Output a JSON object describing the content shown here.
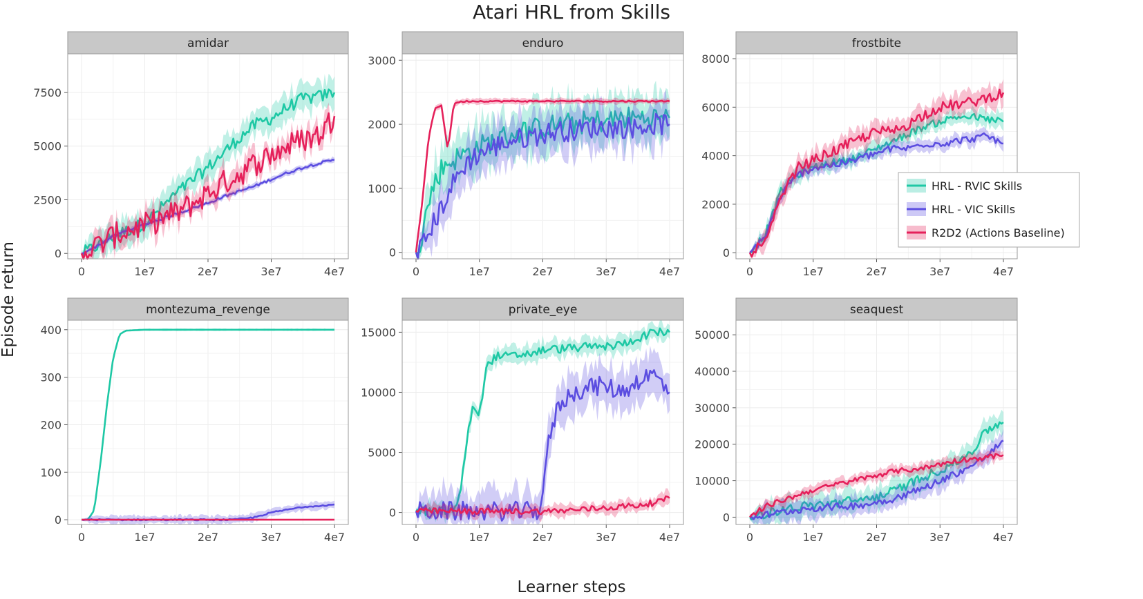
{
  "figure": {
    "title": "Atari HRL from Skills",
    "xlabel": "Learner steps",
    "ylabel": "Episode return"
  },
  "legend": {
    "placement": "right of frostbite panel",
    "entries": [
      {
        "label": "HRL - RVIC Skills",
        "color": "#1ec8a5"
      },
      {
        "label": "HRL - VIC Skills",
        "color": "#5b4de0"
      },
      {
        "label": "R2D2 (Actions Baseline)",
        "color": "#e5205a"
      }
    ]
  },
  "colors": {
    "rvic": "#1ec8a5",
    "vic": "#5b4de0",
    "r2d2": "#e5205a",
    "strip": "#c8c8c8",
    "grid": "#ececec"
  },
  "chart_data": [
    {
      "type": "line",
      "title": "amidar",
      "xlabel": "Learner steps",
      "ylabel": "Episode return",
      "xlim": [
        0,
        40000000
      ],
      "ylim": [
        -250,
        9300
      ],
      "xticks": [
        0,
        10000000,
        20000000,
        30000000,
        40000000
      ],
      "xtick_labels": [
        "0",
        "1e7",
        "2e7",
        "3e7",
        "4e7"
      ],
      "yticks": [
        0,
        2500,
        5000,
        7500
      ],
      "ytick_labels": [
        "0",
        "2500",
        "5000",
        "7500"
      ],
      "x": [
        0,
        2500000,
        5000000,
        7500000,
        10000000,
        12500000,
        15000000,
        17500000,
        20000000,
        22500000,
        25000000,
        27500000,
        30000000,
        32500000,
        35000000,
        37500000,
        40000000
      ],
      "series": [
        {
          "name": "HRL - RVIC Skills",
          "color": "#1ec8a5",
          "noise": 300,
          "values": [
            0,
            350,
            800,
            1100,
            1400,
            2100,
            2800,
            3400,
            4000,
            4700,
            5400,
            6000,
            6300,
            6800,
            7200,
            7300,
            7500
          ],
          "band": 600
        },
        {
          "name": "HRL - VIC Skills",
          "color": "#5b4de0",
          "noise": 60,
          "values": [
            0,
            350,
            800,
            1100,
            1350,
            1600,
            1850,
            2100,
            2350,
            2650,
            2900,
            3150,
            3450,
            3750,
            4000,
            4200,
            4350
          ],
          "band": 120
        },
        {
          "name": "R2D2 (Actions Baseline)",
          "color": "#e5205a",
          "noise": 600,
          "values": [
            0,
            350,
            800,
            1100,
            1300,
            1600,
            1900,
            2300,
            2800,
            3300,
            3700,
            4200,
            4600,
            5000,
            5300,
            5500,
            6400
          ],
          "band": 500
        }
      ]
    },
    {
      "type": "line",
      "title": "enduro",
      "xlabel": "Learner steps",
      "ylabel": "Episode return",
      "xlim": [
        0,
        40000000
      ],
      "ylim": [
        -100,
        3100
      ],
      "xticks": [
        0,
        10000000,
        20000000,
        30000000,
        40000000
      ],
      "xtick_labels": [
        "0",
        "1e7",
        "2e7",
        "3e7",
        "4e7"
      ],
      "yticks": [
        0,
        1000,
        2000,
        3000
      ],
      "ytick_labels": [
        "0",
        "1000",
        "2000",
        "3000"
      ],
      "x": [
        0,
        1000000,
        2000000,
        3000000,
        4000000,
        5000000,
        6000000,
        7000000,
        8000000,
        10000000,
        12500000,
        15000000,
        17500000,
        20000000,
        22500000,
        25000000,
        27500000,
        30000000,
        32500000,
        35000000,
        37500000,
        40000000
      ],
      "series": [
        {
          "name": "HRL - RVIC Skills",
          "color": "#1ec8a5",
          "noise": 180,
          "values": [
            0,
            300,
            800,
            1100,
            1300,
            1400,
            1450,
            1500,
            1550,
            1650,
            1750,
            1850,
            1900,
            1950,
            2000,
            2000,
            2050,
            2050,
            2100,
            2100,
            2100,
            2100
          ],
          "band": 350
        },
        {
          "name": "HRL - VIC Skills",
          "color": "#5b4de0",
          "noise": 170,
          "values": [
            0,
            100,
            300,
            500,
            700,
            900,
            1100,
            1250,
            1400,
            1550,
            1650,
            1750,
            1800,
            1850,
            1900,
            1900,
            1950,
            1950,
            1950,
            1950,
            2000,
            2000
          ],
          "band": 320
        },
        {
          "name": "R2D2 (Actions Baseline)",
          "color": "#e5205a",
          "noise": 10,
          "values": [
            0,
            800,
            1800,
            2250,
            2300,
            1600,
            2330,
            2350,
            2360,
            2360,
            2360,
            2360,
            2360,
            2360,
            2360,
            2360,
            2360,
            2360,
            2360,
            2360,
            2360,
            2360
          ],
          "band": 40
        }
      ]
    },
    {
      "type": "line",
      "title": "frostbite",
      "xlabel": "Learner steps",
      "ylabel": "Episode return",
      "xlim": [
        0,
        40000000
      ],
      "ylim": [
        -250,
        8200
      ],
      "xticks": [
        0,
        10000000,
        20000000,
        30000000,
        40000000
      ],
      "xtick_labels": [
        "0",
        "1e7",
        "2e7",
        "3e7",
        "4e7"
      ],
      "yticks": [
        0,
        2000,
        4000,
        6000,
        8000
      ],
      "ytick_labels": [
        "0",
        "2000",
        "4000",
        "6000",
        "8000"
      ],
      "x": [
        0,
        2500000,
        5000000,
        7500000,
        10000000,
        12500000,
        15000000,
        17500000,
        20000000,
        22500000,
        25000000,
        27500000,
        30000000,
        32500000,
        35000000,
        37500000,
        40000000
      ],
      "series": [
        {
          "name": "HRL - RVIC Skills",
          "color": "#1ec8a5",
          "noise": 150,
          "values": [
            0,
            800,
            2600,
            3200,
            3500,
            3700,
            3800,
            4000,
            4300,
            4600,
            4900,
            5200,
            5400,
            5600,
            5600,
            5500,
            5400
          ],
          "band": 300
        },
        {
          "name": "HRL - VIC Skills",
          "color": "#5b4de0",
          "noise": 150,
          "values": [
            0,
            700,
            2400,
            3200,
            3500,
            3600,
            3700,
            3900,
            4100,
            4300,
            4300,
            4500,
            4500,
            4600,
            4700,
            4800,
            4500
          ],
          "band": 250
        },
        {
          "name": "R2D2 (Actions Baseline)",
          "color": "#e5205a",
          "noise": 220,
          "values": [
            0,
            400,
            2300,
            3500,
            3800,
            4100,
            4400,
            4700,
            5000,
            5000,
            5300,
            5700,
            6000,
            6100,
            6200,
            6400,
            6600
          ],
          "band": 400
        }
      ]
    },
    {
      "type": "line",
      "title": "montezuma_revenge",
      "xlabel": "Learner steps",
      "ylabel": "Episode return",
      "xlim": [
        0,
        40000000
      ],
      "ylim": [
        -10,
        420
      ],
      "xticks": [
        0,
        10000000,
        20000000,
        30000000,
        40000000
      ],
      "xtick_labels": [
        "0",
        "1e7",
        "2e7",
        "3e7",
        "4e7"
      ],
      "yticks": [
        0,
        100,
        200,
        300,
        400
      ],
      "ytick_labels": [
        "0",
        "100",
        "200",
        "300",
        "400"
      ],
      "x": [
        0,
        1000000,
        2000000,
        3000000,
        4000000,
        5000000,
        6000000,
        7000000,
        10000000,
        15000000,
        20000000,
        24000000,
        27000000,
        30000000,
        35000000,
        40000000
      ],
      "series": [
        {
          "name": "HRL - RVIC Skills",
          "color": "#1ec8a5",
          "noise": 0,
          "values": [
            0,
            0,
            20,
            120,
            240,
            340,
            390,
            398,
            400,
            400,
            400,
            400,
            400,
            400,
            400,
            400
          ],
          "band": 2
        },
        {
          "name": "HRL - VIC Skills",
          "color": "#5b4de0",
          "noise": 1.5,
          "values": [
            0,
            0,
            0,
            0,
            0,
            0,
            0,
            0,
            0,
            0,
            0,
            0,
            4,
            15,
            27,
            32
          ],
          "band": 8
        },
        {
          "name": "R2D2 (Actions Baseline)",
          "color": "#e5205a",
          "noise": 0,
          "values": [
            0,
            0,
            0,
            0,
            0,
            0,
            0,
            0,
            0,
            0,
            0,
            0,
            0,
            0,
            0,
            0
          ],
          "band": 0
        }
      ]
    },
    {
      "type": "line",
      "title": "private_eye",
      "xlabel": "Learner steps",
      "ylabel": "Episode return",
      "xlim": [
        0,
        40000000
      ],
      "ylim": [
        -1000,
        16000
      ],
      "xticks": [
        0,
        10000000,
        20000000,
        30000000,
        40000000
      ],
      "xtick_labels": [
        "0",
        "1e7",
        "2e7",
        "3e7",
        "4e7"
      ],
      "yticks": [
        0,
        5000,
        10000,
        15000
      ],
      "ytick_labels": [
        "0",
        "5000",
        "10000",
        "15000"
      ],
      "x": [
        0,
        2000000,
        4000000,
        6000000,
        7000000,
        8000000,
        9000000,
        10000000,
        11000000,
        12500000,
        15000000,
        17500000,
        18500000,
        19500000,
        20000000,
        21000000,
        22500000,
        25000000,
        27500000,
        30000000,
        32500000,
        35000000,
        37500000,
        40000000
      ],
      "series": [
        {
          "name": "HRL - RVIC Skills",
          "color": "#1ec8a5",
          "noise": 350,
          "values": [
            100,
            100,
            100,
            200,
            1500,
            6000,
            9000,
            8000,
            12000,
            13000,
            13000,
            13200,
            13300,
            13400,
            13500,
            13600,
            13600,
            13700,
            13800,
            13800,
            14000,
            14500,
            15000,
            15000
          ],
          "band": 700
        },
        {
          "name": "HRL - VIC Skills",
          "color": "#5b4de0",
          "noise": 800,
          "values": [
            100,
            100,
            100,
            100,
            100,
            100,
            100,
            100,
            100,
            100,
            100,
            100,
            100,
            200,
            2000,
            6000,
            9000,
            10000,
            10500,
            10500,
            10000,
            11000,
            11500,
            10000
          ],
          "band": 1600
        },
        {
          "name": "R2D2 (Actions Baseline)",
          "color": "#e5205a",
          "noise": 250,
          "values": [
            100,
            100,
            100,
            100,
            100,
            100,
            100,
            100,
            100,
            100,
            100,
            100,
            100,
            100,
            100,
            100,
            150,
            200,
            300,
            400,
            500,
            600,
            800,
            1200
          ],
          "band": 500
        }
      ]
    },
    {
      "type": "line",
      "title": "seaquest",
      "xlabel": "Learner steps",
      "ylabel": "Episode return",
      "xlim": [
        0,
        40000000
      ],
      "ylim": [
        -2000,
        54000
      ],
      "xticks": [
        0,
        10000000,
        20000000,
        30000000,
        40000000
      ],
      "xtick_labels": [
        "0",
        "1e7",
        "2e7",
        "3e7",
        "4e7"
      ],
      "yticks": [
        0,
        10000,
        20000,
        30000,
        40000,
        50000
      ],
      "ytick_labels": [
        "0",
        "10000",
        "20000",
        "30000",
        "40000",
        "50000"
      ],
      "x": [
        0,
        2500000,
        5000000,
        7500000,
        10000000,
        12500000,
        15000000,
        17500000,
        20000000,
        22500000,
        25000000,
        27500000,
        30000000,
        32500000,
        35000000,
        37500000,
        40000000
      ],
      "series": [
        {
          "name": "HRL - RVIC Skills",
          "color": "#1ec8a5",
          "noise": 1300,
          "values": [
            0,
            1000,
            2000,
            2800,
            3200,
            3800,
            4200,
            4800,
            5500,
            7000,
            9000,
            11000,
            13000,
            15000,
            18000,
            24000,
            26000
          ],
          "band": 3000
        },
        {
          "name": "HRL - VIC Skills",
          "color": "#5b4de0",
          "noise": 1000,
          "values": [
            0,
            600,
            1300,
            2000,
            2500,
            2700,
            3000,
            3300,
            4000,
            5000,
            6500,
            8000,
            10000,
            12000,
            14000,
            17000,
            21000
          ],
          "band": 2500
        },
        {
          "name": "R2D2 (Actions Baseline)",
          "color": "#e5205a",
          "noise": 700,
          "values": [
            0,
            3000,
            4500,
            6000,
            7500,
            8500,
            9500,
            10500,
            11500,
            12500,
            13000,
            13500,
            14500,
            15500,
            16000,
            16500,
            17000
          ],
          "band": 1400
        }
      ]
    }
  ]
}
